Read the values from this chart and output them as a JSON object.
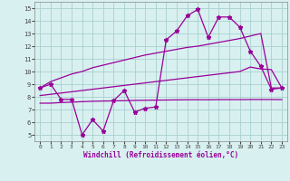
{
  "series_jagged_x": [
    0,
    1,
    2,
    3,
    4,
    5,
    6,
    7,
    8,
    9,
    10,
    11,
    12,
    13,
    14,
    15,
    16,
    17,
    18,
    19,
    20,
    21,
    22,
    23
  ],
  "series_jagged_y": [
    8.7,
    9.0,
    7.8,
    7.8,
    5.0,
    6.2,
    5.3,
    7.7,
    8.5,
    6.8,
    7.1,
    7.2,
    12.5,
    13.2,
    14.4,
    14.9,
    12.7,
    14.3,
    14.3,
    13.5,
    11.6,
    10.4,
    8.6,
    8.7
  ],
  "upper_x": [
    0,
    1,
    2,
    3,
    4,
    5,
    6,
    7,
    8,
    9,
    10,
    11,
    12,
    13,
    14,
    15,
    16,
    17,
    18,
    19,
    20,
    21,
    22,
    23
  ],
  "upper_y": [
    8.7,
    9.2,
    9.5,
    9.8,
    10.0,
    10.3,
    10.5,
    10.7,
    10.9,
    11.1,
    11.3,
    11.45,
    11.6,
    11.75,
    11.9,
    12.0,
    12.15,
    12.3,
    12.45,
    12.6,
    12.8,
    13.0,
    8.7,
    8.7
  ],
  "mid_x": [
    0,
    1,
    2,
    3,
    4,
    5,
    6,
    7,
    8,
    9,
    10,
    11,
    12,
    13,
    14,
    15,
    16,
    17,
    18,
    19,
    20,
    21,
    22,
    23
  ],
  "mid_y": [
    8.1,
    8.2,
    8.3,
    8.4,
    8.5,
    8.6,
    8.7,
    8.8,
    8.9,
    9.0,
    9.1,
    9.2,
    9.3,
    9.4,
    9.5,
    9.6,
    9.7,
    9.8,
    9.9,
    10.0,
    10.35,
    10.2,
    10.15,
    8.7
  ],
  "lower_x": [
    0,
    1,
    2,
    3,
    4,
    5,
    6,
    7,
    8,
    9,
    10,
    11,
    12,
    13,
    14,
    15,
    16,
    17,
    18,
    19,
    20,
    21,
    22,
    23
  ],
  "lower_y": [
    7.5,
    7.5,
    7.55,
    7.58,
    7.62,
    7.65,
    7.67,
    7.68,
    7.7,
    7.72,
    7.73,
    7.74,
    7.75,
    7.76,
    7.77,
    7.77,
    7.77,
    7.78,
    7.78,
    7.78,
    7.79,
    7.79,
    7.79,
    7.78
  ],
  "color": "#990099",
  "bg_color": "#d8f0f0",
  "grid_color": "#aacfcf",
  "ylim": [
    4.5,
    15.5
  ],
  "xlim": [
    -0.5,
    23.5
  ],
  "yticks": [
    5,
    6,
    7,
    8,
    9,
    10,
    11,
    12,
    13,
    14,
    15
  ],
  "xticks": [
    0,
    1,
    2,
    3,
    4,
    5,
    6,
    7,
    8,
    9,
    10,
    11,
    12,
    13,
    14,
    15,
    16,
    17,
    18,
    19,
    20,
    21,
    22,
    23
  ],
  "xlabel": "Windchill (Refroidissement éolien,°C)"
}
